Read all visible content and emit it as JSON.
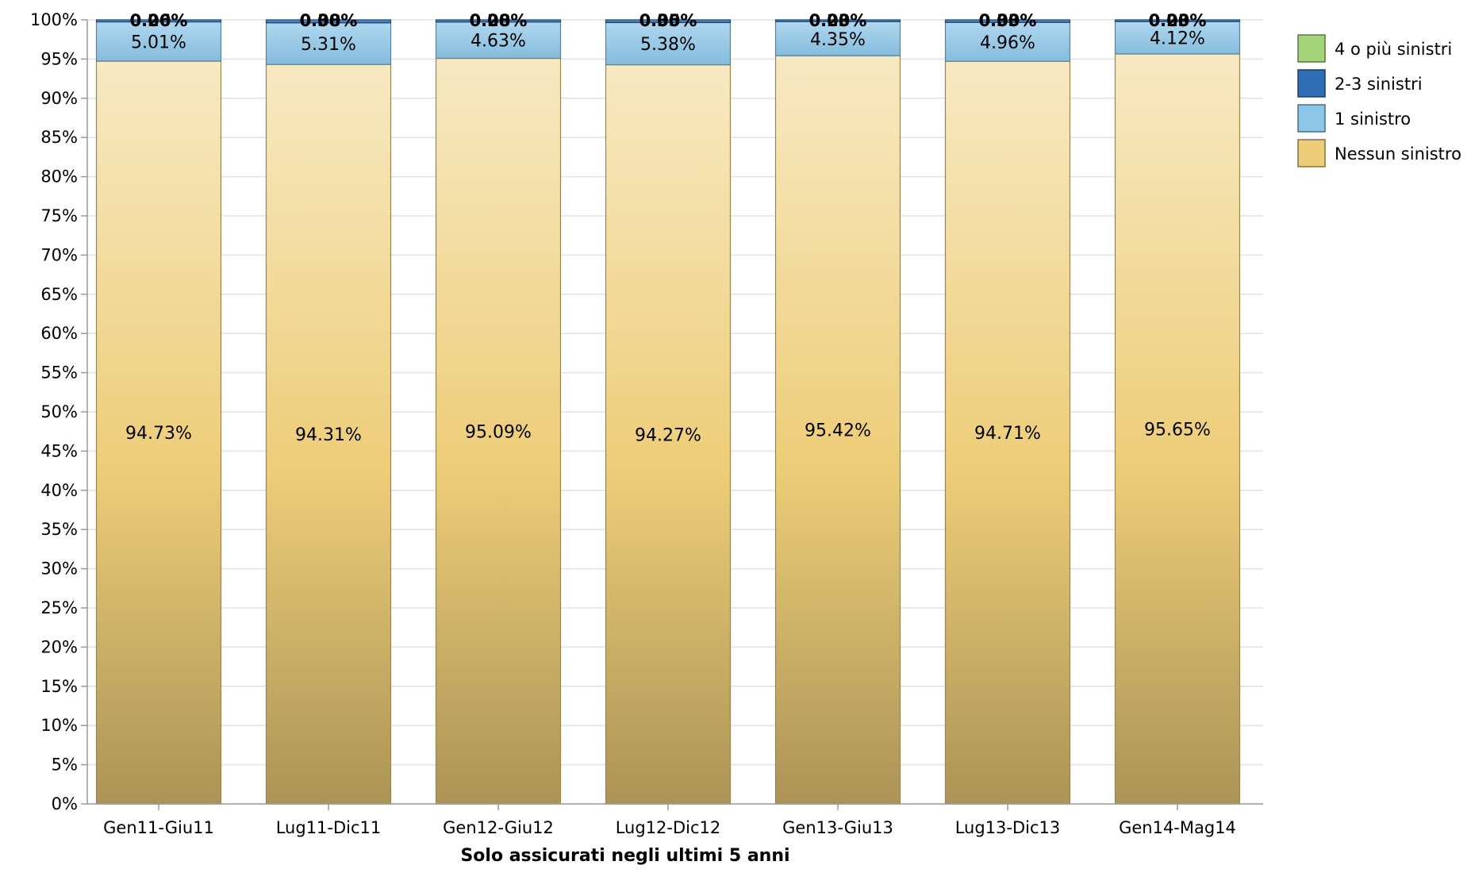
{
  "chart_data": {
    "type": "bar",
    "stacked": true,
    "title": "",
    "xlabel": "Solo assicurati negli ultimi 5 anni",
    "ylabel": "",
    "ylim": [
      0,
      100
    ],
    "y_tick_step": 5,
    "y_tick_labels": [
      "0%",
      "5%",
      "10%",
      "15%",
      "20%",
      "25%",
      "30%",
      "35%",
      "40%",
      "45%",
      "50%",
      "55%",
      "60%",
      "65%",
      "70%",
      "75%",
      "80%",
      "85%",
      "90%",
      "95%",
      "100%"
    ],
    "grid": true,
    "legend_placement": "right",
    "categories": [
      "Gen11-Giu11",
      "Lug11-Dic11",
      "Gen12-Giu12",
      "Lug12-Dic12",
      "Gen13-Giu13",
      "Lug13-Dic13",
      "Gen14-Mag14"
    ],
    "series": [
      {
        "name": "Nessun sinistro",
        "color": "#edcd78",
        "values": [
          94.73,
          94.31,
          95.09,
          94.27,
          95.42,
          94.71,
          95.65
        ],
        "labels": [
          "94.73%",
          "94.31%",
          "95.09%",
          "94.27%",
          "95.42%",
          "94.71%",
          "95.65%"
        ]
      },
      {
        "name": "1 sinistro",
        "color": "#8cc6e8",
        "values": [
          5.01,
          5.31,
          4.63,
          5.38,
          4.35,
          4.96,
          4.12
        ],
        "labels": [
          "5.01%",
          "5.31%",
          "4.63%",
          "5.38%",
          "4.35%",
          "4.96%",
          "4.12%"
        ]
      },
      {
        "name": "2-3 sinistri",
        "color": "#2f6eb5",
        "values": [
          0.26,
          0.38,
          0.28,
          0.35,
          0.23,
          0.33,
          0.23
        ],
        "labels": [
          "0.26%",
          "0.38%",
          "0.28%",
          "0.35%",
          "0.23%",
          "0.33%",
          "0.23%"
        ]
      },
      {
        "name": "4 o più sinistri",
        "color": "#a3d47a",
        "values": [
          0.0,
          0.0,
          0.0,
          0.0,
          0.0,
          0.0,
          0.0
        ],
        "labels": [
          "0.00%",
          "0.00%",
          "0.00%",
          "0.00%",
          "0.00%",
          "0.00%",
          "0.00%"
        ]
      }
    ],
    "legend_order": [
      "4 o più sinistri",
      "2-3 sinistri",
      "1 sinistro",
      "Nessun sinistro"
    ]
  }
}
